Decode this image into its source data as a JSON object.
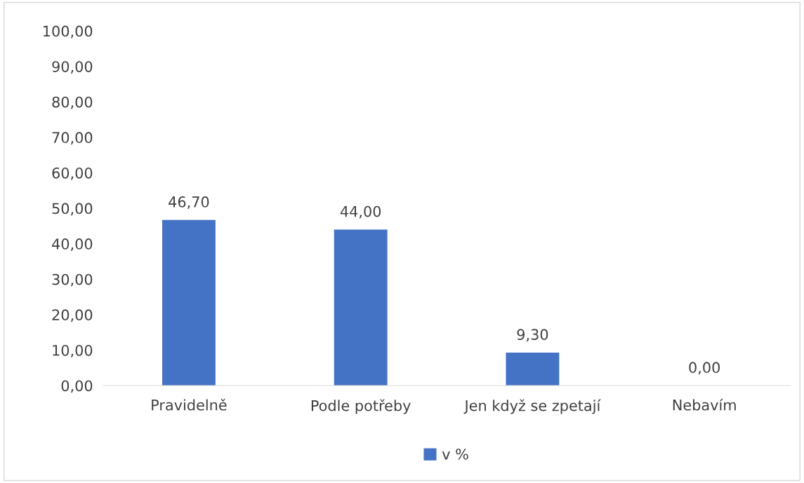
{
  "chart_data": {
    "type": "bar",
    "categories": [
      "Pravidelně",
      "Podle potřeby",
      "Jen když se zpetají",
      "Nebavím"
    ],
    "series": [
      {
        "name": "v %",
        "color": "#4472c4",
        "values": [
          46.7,
          44.0,
          9.3,
          0.0
        ],
        "value_labels": [
          "46,70",
          "44,00",
          "9,30",
          "0,00"
        ]
      }
    ],
    "ylim": [
      0,
      100
    ],
    "yticks": [
      {
        "value": 0,
        "label": "0,00"
      },
      {
        "value": 10,
        "label": "10,00"
      },
      {
        "value": 20,
        "label": "20,00"
      },
      {
        "value": 30,
        "label": "30,00"
      },
      {
        "value": 40,
        "label": "40,00"
      },
      {
        "value": 50,
        "label": "50,00"
      },
      {
        "value": 60,
        "label": "60,00"
      },
      {
        "value": 70,
        "label": "70,00"
      },
      {
        "value": 80,
        "label": "80,00"
      },
      {
        "value": 90,
        "label": "90,00"
      },
      {
        "value": 100,
        "label": "100,00"
      }
    ],
    "grid": false,
    "legend": "bottom"
  }
}
